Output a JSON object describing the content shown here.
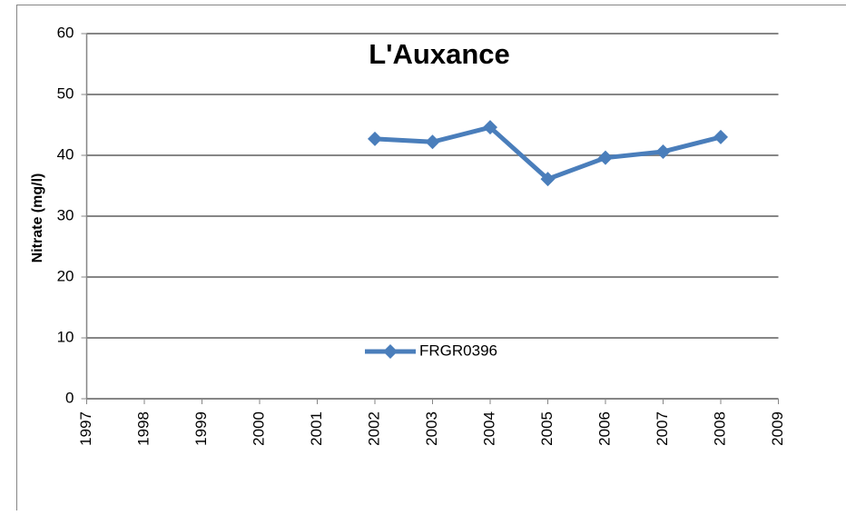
{
  "chart_data": {
    "type": "line",
    "title": "L'Auxance",
    "ylabel": "Nitrate (mg/l)",
    "x": [
      2002,
      2003,
      2004,
      2005,
      2006,
      2007,
      2008
    ],
    "series": [
      {
        "name": "FRGR0396",
        "color": "#4a7ebb",
        "values": [
          42.7,
          42.2,
          44.6,
          36.1,
          39.6,
          40.6,
          43.0
        ]
      }
    ],
    "xlim": [
      1997,
      2009
    ],
    "xticks": [
      1997,
      1998,
      1999,
      2000,
      2001,
      2002,
      2003,
      2004,
      2005,
      2006,
      2007,
      2008,
      2009
    ],
    "ylim": [
      0,
      60
    ],
    "yticks": [
      0,
      10,
      20,
      30,
      40,
      50,
      60
    ],
    "grid": true,
    "legend": "bottom"
  }
}
